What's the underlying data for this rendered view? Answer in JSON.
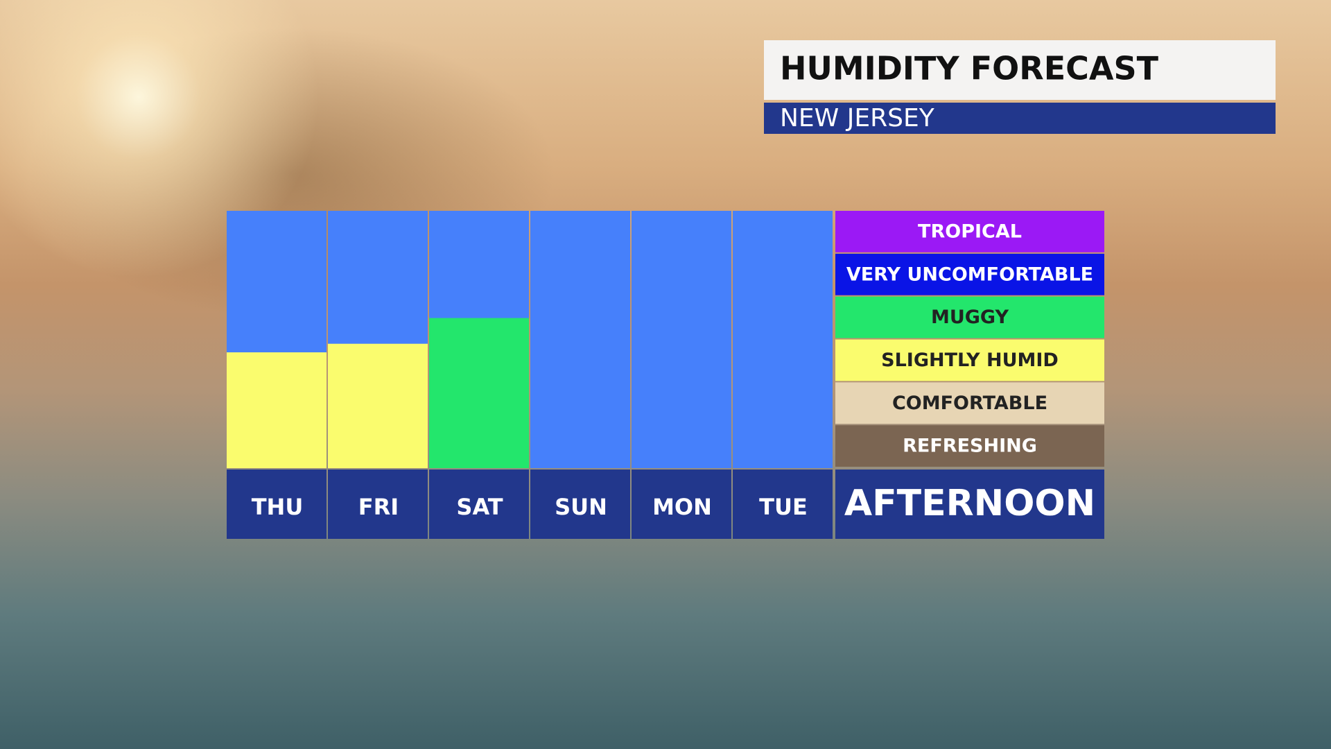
{
  "chart_data": {
    "type": "bar",
    "title": "HUMIDITY FORECAST",
    "subtitle": "NEW JERSEY",
    "period": "AFTERNOON",
    "categories": [
      "THU",
      "FRI",
      "SAT",
      "SUN",
      "MON",
      "TUE"
    ],
    "values": [
      2.7,
      2.9,
      3.5,
      0,
      0,
      0
    ],
    "ylim": [
      0,
      6
    ],
    "background_color": "#4680fb",
    "levels": [
      {
        "name": "TROPICAL",
        "color": "#9b19f5"
      },
      {
        "name": "VERY UNCOMFORTABLE",
        "color": "#0a14e6"
      },
      {
        "name": "MUGGY",
        "color": "#23e66c"
      },
      {
        "name": "SLIGHTLY HUMID",
        "color": "#fafc6e"
      },
      {
        "name": "COMFORTABLE",
        "color": "#e7d5b4"
      },
      {
        "name": "REFRESHING",
        "color": "#7b6552"
      }
    ]
  }
}
